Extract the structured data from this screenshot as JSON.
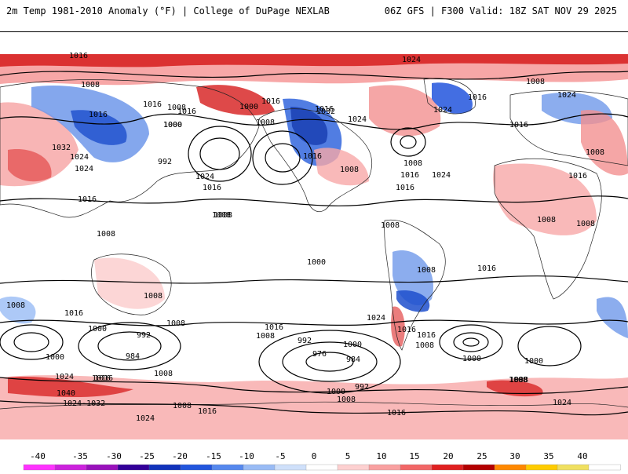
{
  "header": {
    "title": "2m Temp 1981-2010 Anomaly (°F) | College of DuPage NEXLAB",
    "run_info": "06Z GFS | F300 Valid: 18Z SAT NOV 29 2025"
  },
  "map": {
    "variable": "2m temperature anomaly",
    "units": "°F",
    "overlay": "sea-level pressure isobars (mb)",
    "contour_labels": [
      "1016",
      "1024",
      "1008",
      "1016",
      "1008",
      "1000",
      "1016",
      "1008",
      "1000",
      "1016",
      "1016",
      "1032",
      "1024",
      "1024",
      "1016",
      "1000",
      "992",
      "1016",
      "1008",
      "1024",
      "1016",
      "1008",
      "1016",
      "1032",
      "1024",
      "1016",
      "1008",
      "1016",
      "1024",
      "1016",
      "1008",
      "1024",
      "1016",
      "1024",
      "1008",
      "1016",
      "1008",
      "1008",
      "1008",
      "1008",
      "1008",
      "1008",
      "1000",
      "1016",
      "1016",
      "1008",
      "1008",
      "1024",
      "1016",
      "1008",
      "1008",
      "1016",
      "1000",
      "1016",
      "1008",
      "992",
      "1000",
      "1016",
      "1008",
      "992",
      "1000",
      "984",
      "976",
      "984",
      "1000",
      "1000",
      "1008",
      "1024",
      "1016",
      "1040",
      "1024-1032",
      "1008",
      "1016",
      "1000",
      "992",
      "1008",
      "1016",
      "1008",
      "1024",
      "1024"
    ],
    "colorbar": {
      "ticks": [
        "-40",
        "-35",
        "-30",
        "-25",
        "-20",
        "-15",
        "-10",
        "-5",
        "0",
        "5",
        "10",
        "15",
        "20",
        "25",
        "30",
        "35",
        "40"
      ],
      "colors": [
        "#ff33ff",
        "#cc22dd",
        "#9911bb",
        "#330099",
        "#1133bb",
        "#2255dd",
        "#5588ee",
        "#99bbf5",
        "#cfe0fa",
        "#ffffff",
        "#fdd0d0",
        "#f9a0a0",
        "#f26666",
        "#e02020",
        "#b30000",
        "#ff8800",
        "#ffcc00",
        "#f0e060",
        "#ffffff"
      ]
    }
  }
}
